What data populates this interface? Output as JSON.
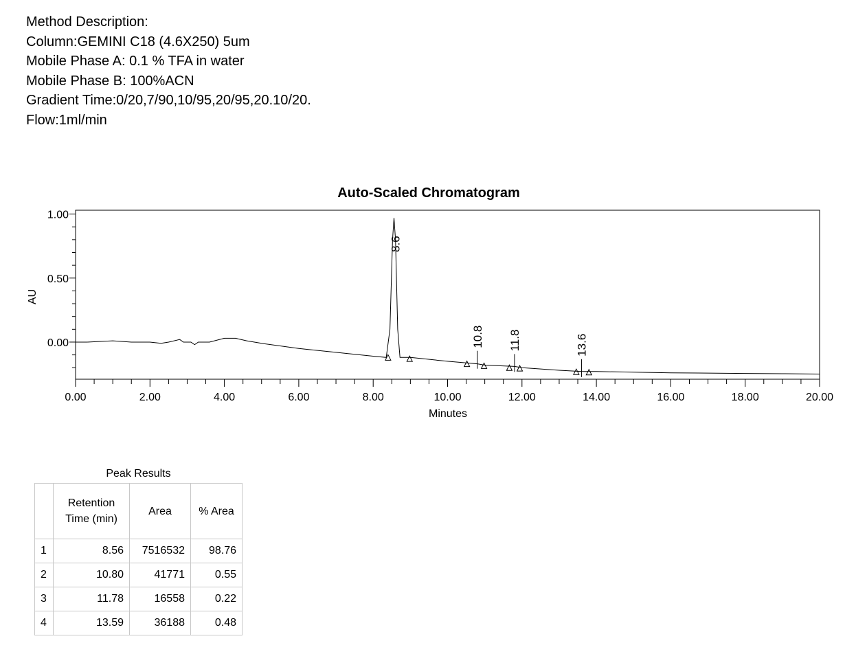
{
  "method": {
    "lines": [
      "Method Description:",
      "Column:GEMINI C18 (4.6X250) 5um",
      "Mobile Phase A: 0.1 % TFA in water",
      "Mobile Phase B: 100%ACN",
      "Gradient Time:0/20,7/90,10/95,20/95,20.10/20.",
      "Flow:1ml/min"
    ]
  },
  "chart_data": {
    "type": "line",
    "title": "Auto-Scaled Chromatogram",
    "xlabel": "Minutes",
    "ylabel": "AU",
    "xlim": [
      0,
      20
    ],
    "ylim": [
      -0.29,
      1.03
    ],
    "x_ticks": [
      "0.00",
      "2.00",
      "4.00",
      "6.00",
      "8.00",
      "10.00",
      "12.00",
      "14.00",
      "16.00",
      "18.00",
      "20.00"
    ],
    "y_ticks": [
      "0.00",
      "0.50",
      "1.00"
    ],
    "grid": false,
    "series": [
      {
        "x": [
          0,
          0.3,
          1,
          1.5,
          2,
          2.3,
          2.5,
          2.8,
          2.9,
          3.1,
          3.2,
          3.3,
          3.6,
          4,
          4.3,
          4.6,
          5,
          6,
          7,
          8,
          8.35,
          8.45,
          8.52,
          8.56,
          8.6,
          8.66,
          8.72,
          9,
          10,
          10.8,
          11,
          11.8,
          12,
          13,
          13.6,
          14,
          15,
          16,
          17,
          18,
          19,
          20
        ],
        "y": [
          0.0,
          0.0,
          0.01,
          0.0,
          0.0,
          -0.01,
          0.0,
          0.02,
          0.0,
          0.0,
          -0.02,
          0.0,
          0.0,
          0.03,
          0.03,
          0.01,
          -0.01,
          -0.05,
          -0.08,
          -0.11,
          -0.12,
          0.1,
          0.8,
          0.97,
          0.8,
          0.1,
          -0.12,
          -0.12,
          -0.15,
          -0.17,
          -0.18,
          -0.19,
          -0.2,
          -0.22,
          -0.23,
          -0.23,
          -0.235,
          -0.24,
          -0.242,
          -0.245,
          -0.247,
          -0.25
        ]
      }
    ],
    "peak_labels": [
      "8.6",
      "10.8",
      "11.8",
      "13.6"
    ],
    "peak_times": [
      8.6,
      10.8,
      11.8,
      13.6
    ],
    "peak_baselines": [
      -0.12,
      -0.165,
      -0.19,
      -0.23
    ],
    "integration_markers": [
      {
        "x": 8.4,
        "y": -0.12
      },
      {
        "x": 8.98,
        "y": -0.13
      },
      {
        "x": 10.52,
        "y": -0.17
      },
      {
        "x": 10.98,
        "y": -0.185
      },
      {
        "x": 11.66,
        "y": -0.2
      },
      {
        "x": 11.94,
        "y": -0.205
      },
      {
        "x": 13.46,
        "y": -0.232
      },
      {
        "x": 13.8,
        "y": -0.235
      }
    ]
  },
  "peak_results": {
    "caption": "Peak Results",
    "headers": [
      "",
      "Retention Time (min)",
      "Area",
      "% Area"
    ],
    "rows": [
      [
        "1",
        "8.56",
        "7516532",
        "98.76"
      ],
      [
        "2",
        "10.80",
        "41771",
        "0.55"
      ],
      [
        "3",
        "11.78",
        "16558",
        "0.22"
      ],
      [
        "4",
        "13.59",
        "36188",
        "0.48"
      ]
    ]
  }
}
